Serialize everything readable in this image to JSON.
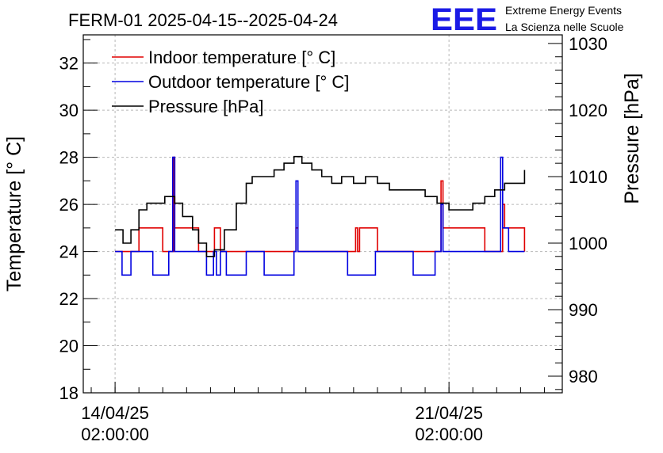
{
  "chart_data": {
    "type": "line",
    "title": "FERM-01 2025-04-15--2025-04-24",
    "ylabel": "Temperature [° C]",
    "y2label": "Pressure [hPa]",
    "ylim": [
      18,
      33.2
    ],
    "y2lim": [
      977.5,
      1031.3
    ],
    "xlim": [
      "2025-04-13 10:00",
      "2025-04-23 11:00"
    ],
    "yticks": [
      "18",
      "20",
      "22",
      "24",
      "26",
      "28",
      "30",
      "32"
    ],
    "y2ticks": [
      "980",
      "990",
      "1000",
      "1010",
      "1020",
      "1030"
    ],
    "xticks": [
      {
        "x": "2025-04-14 02:00",
        "line1": "14/04/25",
        "line2": "02:00:00"
      },
      {
        "x": "2025-04-21 02:00",
        "line1": "21/04/25",
        "line2": "02:00:00"
      }
    ],
    "grid": true,
    "legend_position": "top-left",
    "series": [
      {
        "name": "Indoor temperature [° C]",
        "color": "#e00000",
        "axis": "left",
        "points": [
          [
            "2025-04-14 02:00",
            24
          ],
          [
            "2025-04-14 12:00",
            24
          ],
          [
            "2025-04-14 14:00",
            25
          ],
          [
            "2025-04-15 00:00",
            25
          ],
          [
            "2025-04-15 02:00",
            24
          ],
          [
            "2025-04-15 07:00",
            24
          ],
          [
            "2025-04-15 07:30",
            28
          ],
          [
            "2025-04-15 08:00",
            25
          ],
          [
            "2025-04-15 18:00",
            25
          ],
          [
            "2025-04-15 20:00",
            24
          ],
          [
            "2025-04-16 03:00",
            24
          ],
          [
            "2025-04-16 04:00",
            25
          ],
          [
            "2025-04-16 06:00",
            25
          ],
          [
            "2025-04-16 07:00",
            24
          ],
          [
            "2025-04-17 20:00",
            24
          ],
          [
            "2025-04-17 21:00",
            25
          ],
          [
            "2025-04-17 22:00",
            24
          ],
          [
            "2025-04-19 02:00",
            24
          ],
          [
            "2025-04-19 03:00",
            25
          ],
          [
            "2025-04-19 04:00",
            24
          ],
          [
            "2025-04-19 05:00",
            25
          ],
          [
            "2025-04-19 13:00",
            25
          ],
          [
            "2025-04-19 14:00",
            24
          ],
          [
            "2025-04-20 21:00",
            24
          ],
          [
            "2025-04-20 22:00",
            27
          ],
          [
            "2025-04-20 23:00",
            25
          ],
          [
            "2025-04-21 19:00",
            25
          ],
          [
            "2025-04-21 20:00",
            24
          ],
          [
            "2025-04-22 04:00",
            24
          ],
          [
            "2025-04-22 05:00",
            26
          ],
          [
            "2025-04-22 06:00",
            25
          ],
          [
            "2025-04-22 15:00",
            25
          ],
          [
            "2025-04-22 16:00",
            24
          ]
        ]
      },
      {
        "name": "Outdoor temperature [° C]",
        "color": "#0000e0",
        "axis": "left",
        "points": [
          [
            "2025-04-14 02:00",
            24
          ],
          [
            "2025-04-14 05:00",
            24
          ],
          [
            "2025-04-14 05:30",
            23
          ],
          [
            "2025-04-14 09:00",
            23
          ],
          [
            "2025-04-14 10:00",
            24
          ],
          [
            "2025-04-14 20:00",
            24
          ],
          [
            "2025-04-14 21:00",
            23
          ],
          [
            "2025-04-15 04:00",
            23
          ],
          [
            "2025-04-15 05:00",
            24
          ],
          [
            "2025-04-15 06:00",
            24
          ],
          [
            "2025-04-15 07:00",
            28
          ],
          [
            "2025-04-15 08:00",
            24
          ],
          [
            "2025-04-15 23:00",
            24
          ],
          [
            "2025-04-16 00:00",
            23
          ],
          [
            "2025-04-16 03:00",
            23
          ],
          [
            "2025-04-16 03:30",
            24
          ],
          [
            "2025-04-16 04:30",
            24
          ],
          [
            "2025-04-16 05:00",
            23
          ],
          [
            "2025-04-16 06:00",
            23
          ],
          [
            "2025-04-16 07:00",
            24
          ],
          [
            "2025-04-16 09:00",
            24
          ],
          [
            "2025-04-16 10:00",
            23
          ],
          [
            "2025-04-16 19:00",
            23
          ],
          [
            "2025-04-16 20:00",
            24
          ],
          [
            "2025-04-17 04:00",
            24
          ],
          [
            "2025-04-17 05:00",
            23
          ],
          [
            "2025-04-17 19:00",
            23
          ],
          [
            "2025-04-17 20:00",
            24
          ],
          [
            "2025-04-17 21:00",
            27
          ],
          [
            "2025-04-17 22:00",
            24
          ],
          [
            "2025-04-18 22:00",
            24
          ],
          [
            "2025-04-18 23:00",
            23
          ],
          [
            "2025-04-19 12:00",
            23
          ],
          [
            "2025-04-19 13:00",
            24
          ],
          [
            "2025-04-20 07:00",
            24
          ],
          [
            "2025-04-20 08:00",
            23
          ],
          [
            "2025-04-20 18:00",
            23
          ],
          [
            "2025-04-20 19:00",
            24
          ],
          [
            "2025-04-20 21:00",
            24
          ],
          [
            "2025-04-20 22:00",
            26
          ],
          [
            "2025-04-20 23:00",
            24
          ],
          [
            "2025-04-22 03:00",
            24
          ],
          [
            "2025-04-22 04:00",
            28
          ],
          [
            "2025-04-22 05:00",
            25
          ],
          [
            "2025-04-22 07:00",
            25
          ],
          [
            "2025-04-22 08:00",
            24
          ],
          [
            "2025-04-22 16:00",
            24
          ]
        ]
      },
      {
        "name": "Pressure [hPa]",
        "color": "#000000",
        "axis": "right",
        "points": [
          [
            "2025-04-14 02:00",
            1002
          ],
          [
            "2025-04-14 06:00",
            1000
          ],
          [
            "2025-04-14 10:00",
            1002
          ],
          [
            "2025-04-14 14:00",
            1005
          ],
          [
            "2025-04-14 18:00",
            1006
          ],
          [
            "2025-04-14 23:00",
            1006
          ],
          [
            "2025-04-15 03:00",
            1007
          ],
          [
            "2025-04-15 08:00",
            1006
          ],
          [
            "2025-04-15 12:00",
            1004
          ],
          [
            "2025-04-15 17:00",
            1002
          ],
          [
            "2025-04-15 20:00",
            1000
          ],
          [
            "2025-04-16 00:00",
            998
          ],
          [
            "2025-04-16 04:00",
            999
          ],
          [
            "2025-04-16 09:00",
            1002
          ],
          [
            "2025-04-16 15:00",
            1006
          ],
          [
            "2025-04-16 20:00",
            1009
          ],
          [
            "2025-04-16 23:00",
            1010
          ],
          [
            "2025-04-17 05:00",
            1010
          ],
          [
            "2025-04-17 10:00",
            1011
          ],
          [
            "2025-04-17 15:00",
            1012
          ],
          [
            "2025-04-17 20:00",
            1013
          ],
          [
            "2025-04-18 00:00",
            1012
          ],
          [
            "2025-04-18 05:00",
            1011
          ],
          [
            "2025-04-18 10:00",
            1010
          ],
          [
            "2025-04-18 15:00",
            1009
          ],
          [
            "2025-04-18 20:00",
            1010
          ],
          [
            "2025-04-19 02:00",
            1009
          ],
          [
            "2025-04-19 08:00",
            1010
          ],
          [
            "2025-04-19 14:00",
            1009
          ],
          [
            "2025-04-19 20:00",
            1008
          ],
          [
            "2025-04-20 02:00",
            1008
          ],
          [
            "2025-04-20 08:00",
            1008
          ],
          [
            "2025-04-20 14:00",
            1007
          ],
          [
            "2025-04-20 20:00",
            1006
          ],
          [
            "2025-04-21 02:00",
            1005
          ],
          [
            "2025-04-21 08:00",
            1005
          ],
          [
            "2025-04-21 14:00",
            1006
          ],
          [
            "2025-04-21 20:00",
            1007
          ],
          [
            "2025-04-22 01:00",
            1008
          ],
          [
            "2025-04-22 06:00",
            1009
          ],
          [
            "2025-04-22 11:00",
            1009
          ],
          [
            "2025-04-22 16:00",
            1011
          ]
        ]
      }
    ]
  },
  "logo": {
    "text": "EEE",
    "line1": "Extreme Energy Events",
    "line2": "La Scienza nelle Scuole",
    "color": "#1a1ae6"
  }
}
